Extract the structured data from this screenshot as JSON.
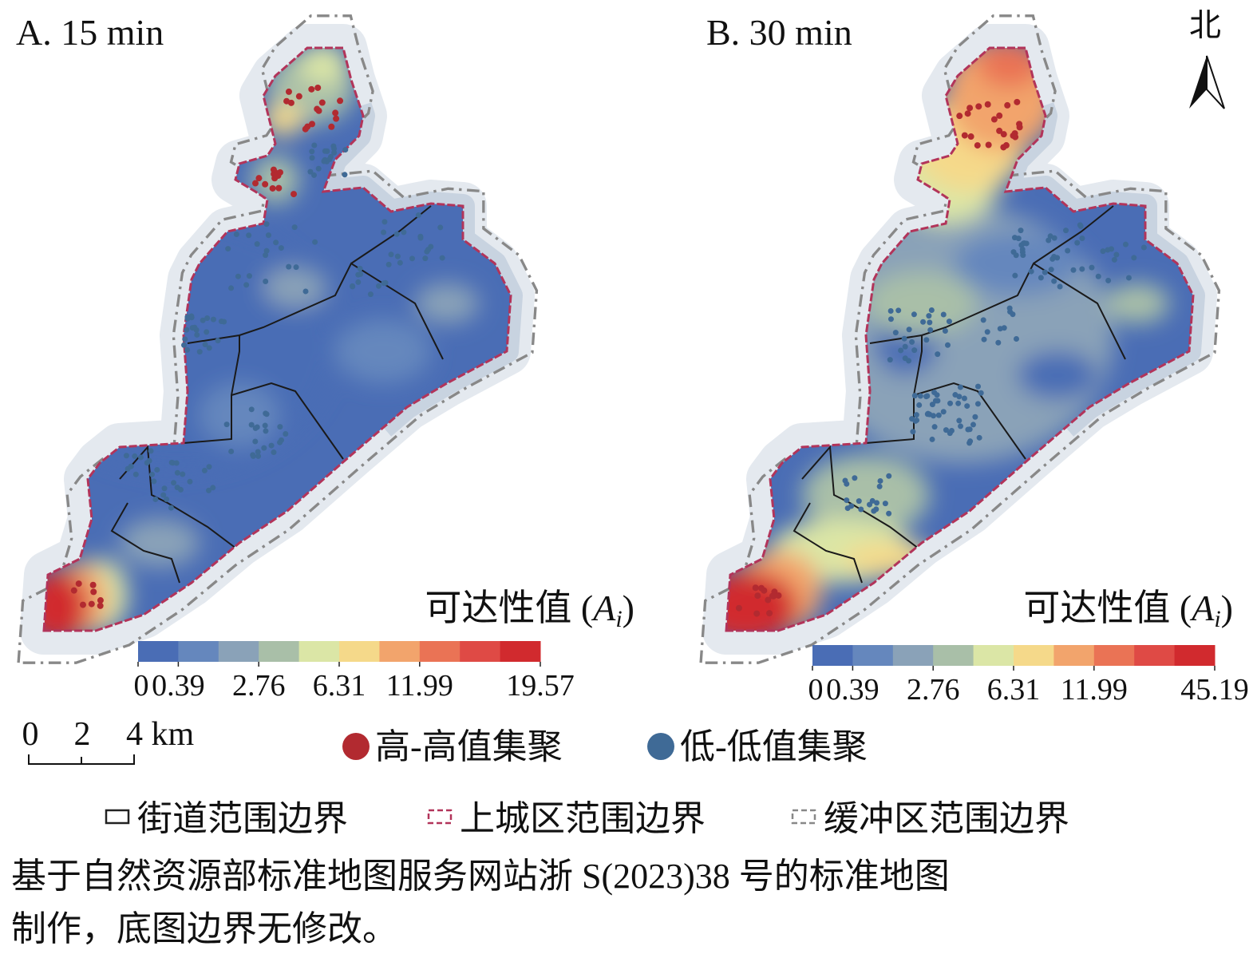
{
  "panels": [
    {
      "title": "A. 15 min",
      "legend": {
        "prefix": "可达性值 (",
        "symbol": "A",
        "subscript": "i",
        "suffix": ")",
        "ticks": [
          "0",
          "0.39",
          "2.76",
          "6.31",
          "11.99",
          "19.57"
        ]
      }
    },
    {
      "title": "B. 30 min",
      "legend": {
        "prefix": "可达性值 (",
        "symbol": "A",
        "subscript": "i",
        "suffix": ")",
        "ticks": [
          "0",
          "0.39",
          "2.76",
          "6.31",
          "11.99",
          "45.19"
        ]
      }
    }
  ],
  "class_colors": [
    "#4a6db5",
    "#6587bd",
    "#8aa2b8",
    "#a9bfa8",
    "#dbe6a6",
    "#f5d98a",
    "#f2a46c",
    "#ea7355",
    "#df4a45",
    "#d12a2e"
  ],
  "north": "北",
  "scale_bar": [
    "0",
    "2",
    "4 km"
  ],
  "cluster_legend": [
    {
      "label": "高-高值集聚",
      "color": "#b22a30"
    },
    {
      "label": "低-低值集聚",
      "color": "#3f6a96"
    }
  ],
  "boundary_legend": [
    "街道范围边界",
    "上城区范围边界",
    "缓冲区范围边界"
  ],
  "caption": [
    "基于自然资源部标准地图服务网站浙 S(2023)38 号的标准地图",
    "制作，底图边界无修改。"
  ]
}
